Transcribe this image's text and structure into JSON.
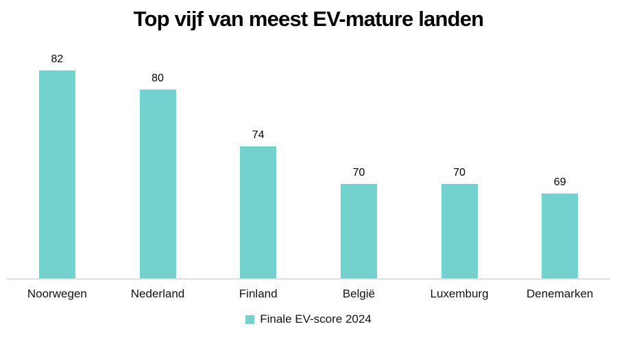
{
  "title": "Top vijf van meest EV-mature landen",
  "legend": {
    "label": "Finale EV-score 2024"
  },
  "colors": {
    "bar": "#74d2ce",
    "axis_line": "#dedede",
    "text": "#000000"
  },
  "chart_data": {
    "type": "bar",
    "title": "Top vijf van meest EV-mature landen",
    "categories": [
      "Noorwegen",
      "Nederland",
      "Finland",
      "België",
      "Luxemburg",
      "Denemarken"
    ],
    "series": [
      {
        "name": "Finale EV-score 2024",
        "values": [
          82,
          80,
          74,
          70,
          70,
          69
        ]
      }
    ],
    "xlabel": "",
    "ylabel": "",
    "ylim": [
      60,
      85
    ],
    "grid": false,
    "value_labels": true,
    "legend_position": "bottom",
    "bar_color": "#74d2ce"
  }
}
